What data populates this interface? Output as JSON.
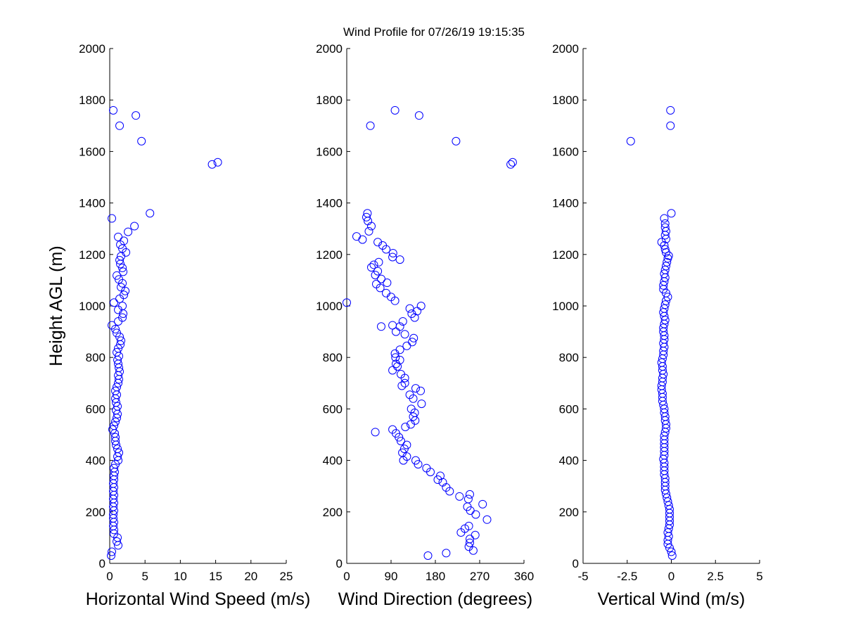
{
  "figure": {
    "title": "Wind Profile for  07/26/19 19:15:35",
    "marker_color": "#0000ff"
  },
  "chart_data": [
    {
      "type": "scatter",
      "xlabel": "Horizontal Wind Speed (m/s)",
      "ylabel": "Height AGL (m)",
      "xlim": [
        0,
        25
      ],
      "ylim": [
        0,
        2000
      ],
      "xticks": [
        "0",
        "5",
        "10",
        "15",
        "20",
        "25"
      ],
      "yticks": [
        "0",
        "200",
        "400",
        "600",
        "800",
        "1000",
        "1200",
        "1400",
        "1600",
        "1800",
        "2000"
      ],
      "grid": false,
      "points": [
        [
          0.2,
          30
        ],
        [
          0.3,
          45
        ],
        [
          1.2,
          70
        ],
        [
          1.0,
          85
        ],
        [
          1.1,
          100
        ],
        [
          0.6,
          115
        ],
        [
          0.6,
          130
        ],
        [
          0.5,
          145
        ],
        [
          0.6,
          160
        ],
        [
          0.5,
          175
        ],
        [
          0.5,
          190
        ],
        [
          0.6,
          205
        ],
        [
          0.5,
          220
        ],
        [
          0.6,
          235
        ],
        [
          0.5,
          250
        ],
        [
          0.6,
          265
        ],
        [
          0.5,
          280
        ],
        [
          0.6,
          295
        ],
        [
          0.5,
          310
        ],
        [
          0.6,
          325
        ],
        [
          0.6,
          340
        ],
        [
          0.7,
          355
        ],
        [
          0.6,
          370
        ],
        [
          0.8,
          385
        ],
        [
          1.2,
          400
        ],
        [
          1.1,
          415
        ],
        [
          1.3,
          430
        ],
        [
          1.1,
          445
        ],
        [
          0.9,
          460
        ],
        [
          0.8,
          475
        ],
        [
          0.8,
          490
        ],
        [
          0.7,
          505
        ],
        [
          0.4,
          520
        ],
        [
          0.6,
          535
        ],
        [
          0.8,
          550
        ],
        [
          1.0,
          565
        ],
        [
          1.1,
          580
        ],
        [
          0.9,
          595
        ],
        [
          1.1,
          610
        ],
        [
          0.9,
          625
        ],
        [
          0.8,
          640
        ],
        [
          1.0,
          655
        ],
        [
          0.8,
          670
        ],
        [
          1.0,
          685
        ],
        [
          1.2,
          700
        ],
        [
          1.3,
          715
        ],
        [
          1.2,
          730
        ],
        [
          1.4,
          745
        ],
        [
          1.3,
          760
        ],
        [
          1.2,
          775
        ],
        [
          1.1,
          790
        ],
        [
          1.3,
          805
        ],
        [
          1.0,
          820
        ],
        [
          1.2,
          835
        ],
        [
          1.5,
          850
        ],
        [
          1.6,
          865
        ],
        [
          1.4,
          880
        ],
        [
          1.0,
          895
        ],
        [
          0.8,
          910
        ],
        [
          0.3,
          925
        ],
        [
          1.2,
          940
        ],
        [
          1.8,
          955
        ],
        [
          1.9,
          970
        ],
        [
          1.2,
          985
        ],
        [
          1.8,
          1000
        ],
        [
          0.6,
          1013
        ],
        [
          1.4,
          1028
        ],
        [
          2.0,
          1043
        ],
        [
          2.2,
          1058
        ],
        [
          1.6,
          1073
        ],
        [
          1.8,
          1088
        ],
        [
          1.3,
          1103
        ],
        [
          1.0,
          1118
        ],
        [
          1.9,
          1133
        ],
        [
          1.8,
          1148
        ],
        [
          1.5,
          1163
        ],
        [
          1.4,
          1178
        ],
        [
          1.6,
          1193
        ],
        [
          2.3,
          1208
        ],
        [
          1.8,
          1223
        ],
        [
          1.5,
          1238
        ],
        [
          2.0,
          1253
        ],
        [
          1.2,
          1268
        ],
        [
          2.6,
          1288
        ],
        [
          3.5,
          1310
        ],
        [
          0.3,
          1340
        ],
        [
          5.7,
          1360
        ],
        [
          14.5,
          1550
        ],
        [
          15.3,
          1558
        ],
        [
          4.5,
          1640
        ],
        [
          1.4,
          1700
        ],
        [
          3.7,
          1740
        ],
        [
          0.5,
          1760
        ]
      ]
    },
    {
      "type": "scatter",
      "xlabel": "Wind Direction (degrees)",
      "xlim": [
        0,
        360
      ],
      "ylim": [
        0,
        2000
      ],
      "xticks": [
        "0",
        "90",
        "180",
        "270",
        "360"
      ],
      "yticks": [
        "0",
        "200",
        "400",
        "600",
        "800",
        "1000",
        "1200",
        "1400",
        "1600",
        "1800",
        "2000"
      ],
      "grid": false,
      "points": [
        [
          165,
          30
        ],
        [
          202,
          40
        ],
        [
          257,
          50
        ],
        [
          248,
          65
        ],
        [
          250,
          80
        ],
        [
          250,
          95
        ],
        [
          261,
          110
        ],
        [
          232,
          120
        ],
        [
          240,
          135
        ],
        [
          248,
          145
        ],
        [
          285,
          170
        ],
        [
          262,
          190
        ],
        [
          251,
          205
        ],
        [
          245,
          220
        ],
        [
          276,
          230
        ],
        [
          247,
          250
        ],
        [
          250,
          268
        ],
        [
          229,
          260
        ],
        [
          209,
          280
        ],
        [
          202,
          295
        ],
        [
          195,
          315
        ],
        [
          185,
          325
        ],
        [
          190,
          340
        ],
        [
          170,
          355
        ],
        [
          162,
          370
        ],
        [
          145,
          385
        ],
        [
          140,
          400
        ],
        [
          115,
          400
        ],
        [
          122,
          415
        ],
        [
          113,
          430
        ],
        [
          117,
          445
        ],
        [
          122,
          460
        ],
        [
          110,
          475
        ],
        [
          106,
          490
        ],
        [
          100,
          505
        ],
        [
          58,
          510
        ],
        [
          93,
          520
        ],
        [
          119,
          530
        ],
        [
          130,
          540
        ],
        [
          139,
          555
        ],
        [
          135,
          570
        ],
        [
          138,
          585
        ],
        [
          131,
          600
        ],
        [
          152,
          620
        ],
        [
          135,
          640
        ],
        [
          128,
          655
        ],
        [
          150,
          670
        ],
        [
          140,
          680
        ],
        [
          118,
          700
        ],
        [
          112,
          690
        ],
        [
          118,
          720
        ],
        [
          110,
          735
        ],
        [
          93,
          750
        ],
        [
          103,
          765
        ],
        [
          100,
          775
        ],
        [
          108,
          790
        ],
        [
          99,
          800
        ],
        [
          98,
          815
        ],
        [
          108,
          830
        ],
        [
          122,
          845
        ],
        [
          133,
          860
        ],
        [
          136,
          875
        ],
        [
          118,
          890
        ],
        [
          100,
          900
        ],
        [
          108,
          920
        ],
        [
          93,
          925
        ],
        [
          70,
          920
        ],
        [
          114,
          940
        ],
        [
          138,
          955
        ],
        [
          132,
          970
        ],
        [
          143,
          980
        ],
        [
          151,
          1000
        ],
        [
          128,
          990
        ],
        [
          0,
          1013
        ],
        [
          98,
          1020
        ],
        [
          90,
          1035
        ],
        [
          80,
          1050
        ],
        [
          68,
          1070
        ],
        [
          60,
          1085
        ],
        [
          82,
          1090
        ],
        [
          70,
          1105
        ],
        [
          58,
          1120
        ],
        [
          63,
          1135
        ],
        [
          50,
          1150
        ],
        [
          55,
          1160
        ],
        [
          65,
          1170
        ],
        [
          108,
          1180
        ],
        [
          93,
          1190
        ],
        [
          94,
          1205
        ],
        [
          80,
          1220
        ],
        [
          73,
          1235
        ],
        [
          63,
          1248
        ],
        [
          32,
          1258
        ],
        [
          20,
          1270
        ],
        [
          45,
          1290
        ],
        [
          50,
          1310
        ],
        [
          43,
          1330
        ],
        [
          40,
          1345
        ],
        [
          42,
          1360
        ],
        [
          333,
          1550
        ],
        [
          337,
          1558
        ],
        [
          222,
          1640
        ],
        [
          48,
          1700
        ],
        [
          147,
          1740
        ],
        [
          98,
          1760
        ]
      ]
    },
    {
      "type": "scatter",
      "xlabel": "Vertical Wind (m/s)",
      "xlim": [
        -5,
        5
      ],
      "ylim": [
        0,
        2000
      ],
      "xticks": [
        "-5",
        "-2.5",
        "0",
        "2.5",
        "5"
      ],
      "yticks": [
        "0",
        "200",
        "400",
        "600",
        "800",
        "1000",
        "1200",
        "1400",
        "1600",
        "1800",
        "2000"
      ],
      "grid": false,
      "points": [
        [
          0.05,
          30
        ],
        [
          0.0,
          45
        ],
        [
          -0.1,
          60
        ],
        [
          -0.2,
          75
        ],
        [
          -0.2,
          90
        ],
        [
          -0.15,
          105
        ],
        [
          -0.2,
          120
        ],
        [
          -0.15,
          135
        ],
        [
          -0.1,
          150
        ],
        [
          -0.1,
          165
        ],
        [
          -0.1,
          180
        ],
        [
          -0.1,
          195
        ],
        [
          -0.1,
          210
        ],
        [
          -0.15,
          225
        ],
        [
          -0.2,
          240
        ],
        [
          -0.25,
          255
        ],
        [
          -0.3,
          270
        ],
        [
          -0.35,
          285
        ],
        [
          -0.35,
          300
        ],
        [
          -0.35,
          315
        ],
        [
          -0.35,
          330
        ],
        [
          -0.4,
          345
        ],
        [
          -0.4,
          360
        ],
        [
          -0.4,
          375
        ],
        [
          -0.4,
          390
        ],
        [
          -0.45,
          405
        ],
        [
          -0.4,
          420
        ],
        [
          -0.4,
          435
        ],
        [
          -0.4,
          450
        ],
        [
          -0.4,
          465
        ],
        [
          -0.4,
          480
        ],
        [
          -0.4,
          495
        ],
        [
          -0.35,
          510
        ],
        [
          -0.3,
          525
        ],
        [
          -0.3,
          540
        ],
        [
          -0.35,
          555
        ],
        [
          -0.35,
          570
        ],
        [
          -0.4,
          585
        ],
        [
          -0.4,
          600
        ],
        [
          -0.45,
          615
        ],
        [
          -0.5,
          630
        ],
        [
          -0.5,
          645
        ],
        [
          -0.5,
          660
        ],
        [
          -0.55,
          675
        ],
        [
          -0.55,
          690
        ],
        [
          -0.5,
          705
        ],
        [
          -0.5,
          720
        ],
        [
          -0.45,
          735
        ],
        [
          -0.5,
          750
        ],
        [
          -0.5,
          765
        ],
        [
          -0.55,
          780
        ],
        [
          -0.5,
          795
        ],
        [
          -0.45,
          810
        ],
        [
          -0.45,
          825
        ],
        [
          -0.4,
          840
        ],
        [
          -0.45,
          855
        ],
        [
          -0.4,
          870
        ],
        [
          -0.4,
          885
        ],
        [
          -0.45,
          900
        ],
        [
          -0.45,
          915
        ],
        [
          -0.4,
          930
        ],
        [
          -0.35,
          945
        ],
        [
          -0.4,
          960
        ],
        [
          -0.45,
          975
        ],
        [
          -0.4,
          990
        ],
        [
          -0.35,
          1005
        ],
        [
          -0.3,
          1020
        ],
        [
          -0.2,
          1035
        ],
        [
          -0.3,
          1050
        ],
        [
          -0.45,
          1065
        ],
        [
          -0.45,
          1080
        ],
        [
          -0.4,
          1095
        ],
        [
          -0.35,
          1110
        ],
        [
          -0.4,
          1125
        ],
        [
          -0.35,
          1140
        ],
        [
          -0.3,
          1155
        ],
        [
          -0.25,
          1170
        ],
        [
          -0.2,
          1185
        ],
        [
          -0.15,
          1195
        ],
        [
          -0.3,
          1208
        ],
        [
          -0.35,
          1220
        ],
        [
          -0.4,
          1235
        ],
        [
          -0.55,
          1248
        ],
        [
          -0.3,
          1260
        ],
        [
          -0.35,
          1275
        ],
        [
          -0.3,
          1290
        ],
        [
          -0.35,
          1305
        ],
        [
          -0.35,
          1320
        ],
        [
          -0.4,
          1340
        ],
        [
          0.0,
          1360
        ],
        [
          -2.3,
          1640
        ],
        [
          -0.05,
          1700
        ],
        [
          -0.05,
          1760
        ]
      ]
    }
  ]
}
